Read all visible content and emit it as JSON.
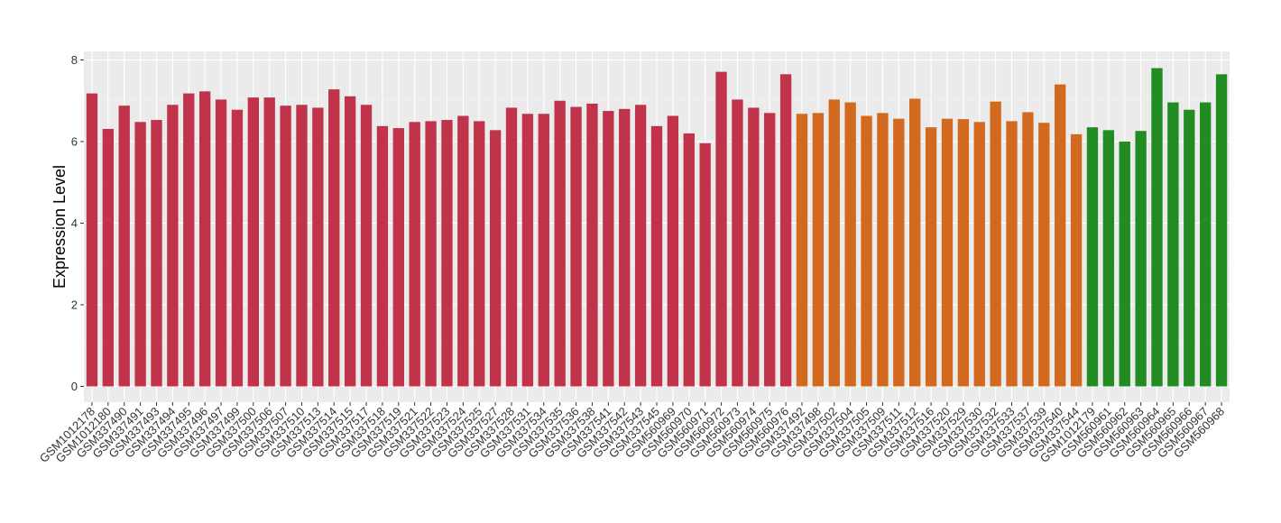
{
  "chart_data": {
    "type": "bar",
    "ylabel": "Expression Level",
    "xlabel": "",
    "ylim": [
      0,
      8.2
    ],
    "yticks": [
      0,
      2,
      4,
      6,
      8
    ],
    "grid": true,
    "legend": "none",
    "colors": {
      "group1": "#C0334A",
      "group2": "#D2691E",
      "group3": "#228B22"
    },
    "categories": [
      "GSM1012178",
      "GSM1012180",
      "GSM337490",
      "GSM337491",
      "GSM337493",
      "GSM337494",
      "GSM337495",
      "GSM337496",
      "GSM337497",
      "GSM337499",
      "GSM337500",
      "GSM337506",
      "GSM337507",
      "GSM337510",
      "GSM337513",
      "GSM337514",
      "GSM337515",
      "GSM337517",
      "GSM337518",
      "GSM337519",
      "GSM337521",
      "GSM337522",
      "GSM337523",
      "GSM337524",
      "GSM337525",
      "GSM337527",
      "GSM337528",
      "GSM337531",
      "GSM337534",
      "GSM337535",
      "GSM337536",
      "GSM337538",
      "GSM337541",
      "GSM337542",
      "GSM337543",
      "GSM337545",
      "GSM560969",
      "GSM560970",
      "GSM560971",
      "GSM560972",
      "GSM560973",
      "GSM560974",
      "GSM560975",
      "GSM560976",
      "GSM337492",
      "GSM337498",
      "GSM337502",
      "GSM337504",
      "GSM337505",
      "GSM337509",
      "GSM337511",
      "GSM337512",
      "GSM337516",
      "GSM337520",
      "GSM337529",
      "GSM337530",
      "GSM337532",
      "GSM337533",
      "GSM337537",
      "GSM337539",
      "GSM337540",
      "GSM337544",
      "GSM1012179",
      "GSM560961",
      "GSM560962",
      "GSM560963",
      "GSM560964",
      "GSM560965",
      "GSM560966",
      "GSM560967",
      "GSM560968"
    ],
    "values": [
      7.18,
      6.31,
      6.88,
      6.48,
      6.53,
      6.9,
      7.18,
      7.23,
      7.03,
      6.78,
      7.08,
      7.08,
      6.88,
      6.9,
      6.83,
      7.28,
      7.11,
      6.9,
      6.38,
      6.33,
      6.48,
      6.5,
      6.53,
      6.63,
      6.5,
      6.28,
      6.83,
      6.68,
      6.68,
      7.0,
      6.85,
      6.93,
      6.75,
      6.8,
      6.9,
      6.38,
      6.63,
      6.2,
      5.96,
      7.71,
      7.03,
      6.83,
      6.7,
      7.65,
      6.68,
      6.7,
      7.03,
      6.96,
      6.63,
      6.7,
      6.56,
      7.05,
      6.35,
      6.56,
      6.55,
      6.48,
      6.98,
      6.5,
      6.72,
      6.46,
      7.4,
      6.18,
      6.35,
      6.28,
      6.0,
      6.26,
      7.8,
      6.96,
      6.78,
      6.96,
      7.65
    ],
    "groups": [
      1,
      1,
      1,
      1,
      1,
      1,
      1,
      1,
      1,
      1,
      1,
      1,
      1,
      1,
      1,
      1,
      1,
      1,
      1,
      1,
      1,
      1,
      1,
      1,
      1,
      1,
      1,
      1,
      1,
      1,
      1,
      1,
      1,
      1,
      1,
      1,
      1,
      1,
      1,
      1,
      1,
      1,
      1,
      1,
      2,
      2,
      2,
      2,
      2,
      2,
      2,
      2,
      2,
      2,
      2,
      2,
      2,
      2,
      2,
      2,
      2,
      2,
      3,
      3,
      3,
      3,
      3,
      3,
      3,
      3,
      3
    ]
  }
}
